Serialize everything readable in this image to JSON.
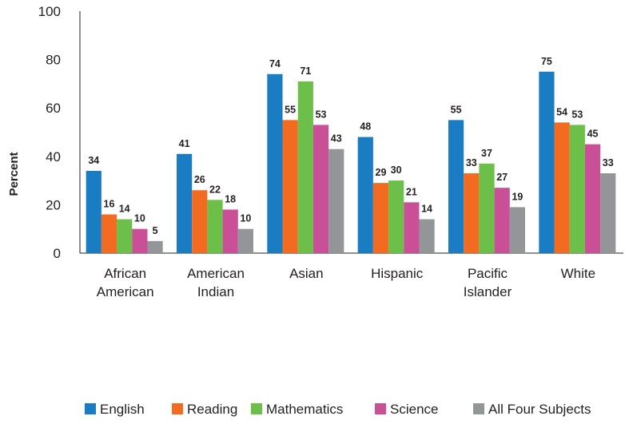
{
  "chart_data": {
    "type": "bar",
    "ylabel": "Percent",
    "ylim": [
      0,
      100
    ],
    "yticks": [
      0,
      20,
      40,
      60,
      80,
      100
    ],
    "categories": [
      [
        "African",
        "American"
      ],
      [
        "American",
        "Indian"
      ],
      [
        "Asian"
      ],
      [
        "Hispanic"
      ],
      [
        "Pacific",
        "Islander"
      ],
      [
        "White"
      ]
    ],
    "series": [
      {
        "name": "English",
        "color": "#1a7dc4",
        "values": [
          34,
          41,
          74,
          48,
          55,
          75
        ]
      },
      {
        "name": "Reading",
        "color": "#f26b21",
        "values": [
          16,
          26,
          55,
          29,
          33,
          54
        ]
      },
      {
        "name": "Mathematics",
        "color": "#6cc04a",
        "values": [
          14,
          22,
          71,
          30,
          37,
          53
        ]
      },
      {
        "name": "Science",
        "color": "#c94f97",
        "values": [
          10,
          18,
          53,
          21,
          27,
          45
        ]
      },
      {
        "name": "All Four Subjects",
        "color": "#939598",
        "values": [
          5,
          10,
          43,
          14,
          19,
          33
        ]
      }
    ],
    "legend_position": "bottom",
    "grid": false,
    "data_labels": true
  }
}
